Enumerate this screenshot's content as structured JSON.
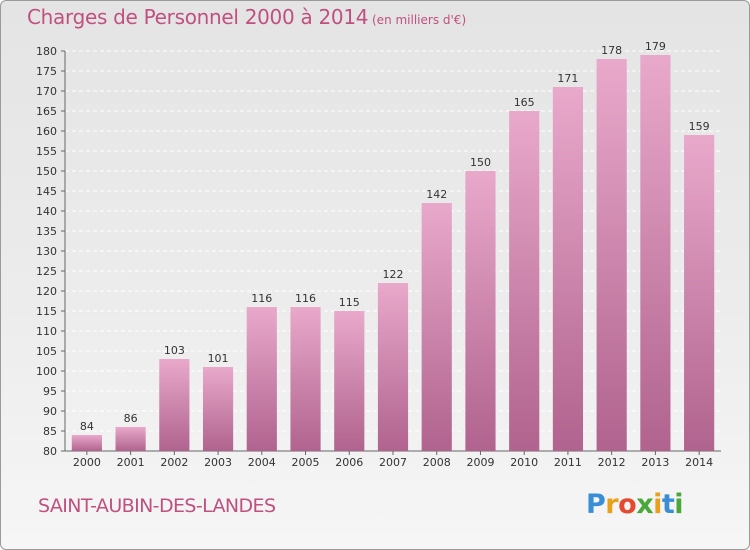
{
  "header": {
    "title": "Charges de Personnel 2000 à 2014",
    "subtitle": "(en milliers d'€)"
  },
  "footer": {
    "commune": "SAINT-AUBIN-DES-LANDES",
    "logo_text": "Proxiti",
    "logo_colors": [
      "#3a8ed6",
      "#e8a21a",
      "#e44a2f",
      "#4aa83a",
      "#e8a21a",
      "#3a8ed6",
      "#4aa83a"
    ]
  },
  "colors": {
    "title": "#c0507f",
    "bar_light": "#e9a9cb",
    "bar_dark": "#b0638e"
  },
  "chart_data": {
    "type": "bar",
    "title": "Charges de Personnel 2000 à 2014",
    "subtitle": "(en milliers d'€)",
    "categories": [
      "2000",
      "2001",
      "2002",
      "2003",
      "2004",
      "2005",
      "2006",
      "2007",
      "2008",
      "2009",
      "2010",
      "2011",
      "2012",
      "2013",
      "2014"
    ],
    "values": [
      84,
      86,
      103,
      101,
      116,
      116,
      115,
      122,
      142,
      150,
      165,
      171,
      178,
      179,
      159
    ],
    "ylim": [
      80,
      180
    ],
    "ytick_step": 5,
    "grid": true,
    "legend": "none"
  }
}
